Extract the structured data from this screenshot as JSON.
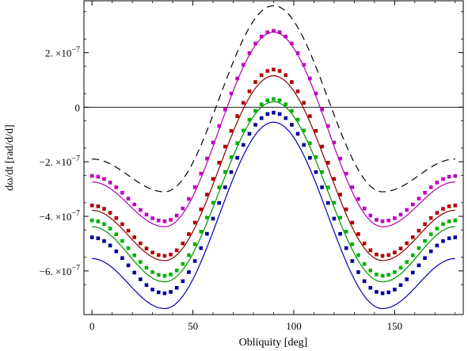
{
  "chart_data": {
    "type": "line",
    "title": "",
    "xlabel": "Obliquity [deg]",
    "ylabel": "dω/dt [rad/d/d]",
    "xlim": [
      -4,
      184
    ],
    "ylim": [
      -7.6e-07,
      3.9e-07
    ],
    "x_ticks": [
      0,
      50,
      100,
      150
    ],
    "x_tick_labels": [
      "0",
      "50",
      "100",
      "150"
    ],
    "y_ticks": [
      -6e-07,
      -4e-07,
      -2e-07,
      0,
      2e-07
    ],
    "y_tick_mantissas": [
      "−6.",
      "−4.",
      "−2.",
      "0",
      "2."
    ],
    "y_tick_times": "×10",
    "y_tick_exponent": "−7",
    "zero_line": true,
    "grid": false,
    "legend": "none",
    "x_sample_step": 3,
    "series": [
      {
        "style": "dashed",
        "color": "#000000",
        "y_at_0": -1.9e-07,
        "y_at_90": 3.72e-07,
        "y_at_36": -3.1e-07
      },
      {
        "style": "solid",
        "color": "#b000b0",
        "y_at_0": -2.74e-07,
        "y_at_90": 2.75e-07,
        "y_at_36": -4.38e-07
      },
      {
        "style": "markers",
        "color": "#c000c0",
        "y_at_0": -2.52e-07,
        "y_at_90": 2.8e-07,
        "y_at_36": -4.18e-07
      },
      {
        "style": "solid",
        "color": "#8b0000",
        "y_at_0": -3.78e-07,
        "y_at_90": 1.15e-07,
        "y_at_36": -5.62e-07
      },
      {
        "style": "markers",
        "color": "#b00000",
        "y_at_0": -3.6e-07,
        "y_at_90": 1.38e-07,
        "y_at_36": -5.45e-07
      },
      {
        "style": "solid",
        "color": "#009000",
        "y_at_0": -4.38e-07,
        "y_at_90": 2e-08,
        "y_at_36": -6.4e-07
      },
      {
        "style": "markers",
        "color": "#00b000",
        "y_at_0": -4.15e-07,
        "y_at_90": 3e-08,
        "y_at_36": -6.18e-07
      },
      {
        "style": "markers",
        "color": "#000099",
        "y_at_0": -4.77e-07,
        "y_at_90": -2e-08,
        "y_at_36": -6.82e-07
      },
      {
        "style": "solid",
        "color": "#0000b0",
        "y_at_0": -5.55e-07,
        "y_at_90": -5.5e-08,
        "y_at_36": -7.38e-07
      }
    ]
  }
}
